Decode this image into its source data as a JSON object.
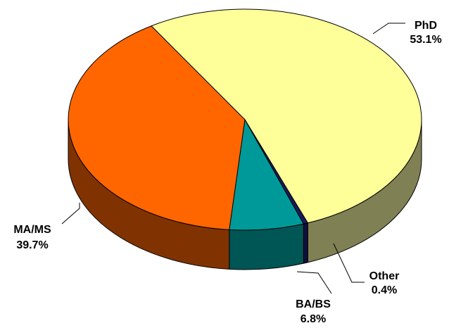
{
  "chart_data": {
    "type": "pie",
    "title": "",
    "slices": [
      {
        "label": "PhD",
        "value": 53.1,
        "value_label": "53.1%",
        "color": "#ffff99",
        "side_color": "#808055"
      },
      {
        "label": "Other",
        "value": 0.4,
        "value_label": "0.4%",
        "color": "#1a1a5e",
        "side_color": "#101040"
      },
      {
        "label": "BA/BS",
        "value": 6.8,
        "value_label": "6.8%",
        "color": "#009999",
        "side_color": "#005555"
      },
      {
        "label": "MA/MS",
        "value": 39.7,
        "value_label": "39.7%",
        "color": "#ff6600",
        "side_color": "#803300"
      }
    ],
    "style": "3d-pie",
    "legend": "none"
  }
}
